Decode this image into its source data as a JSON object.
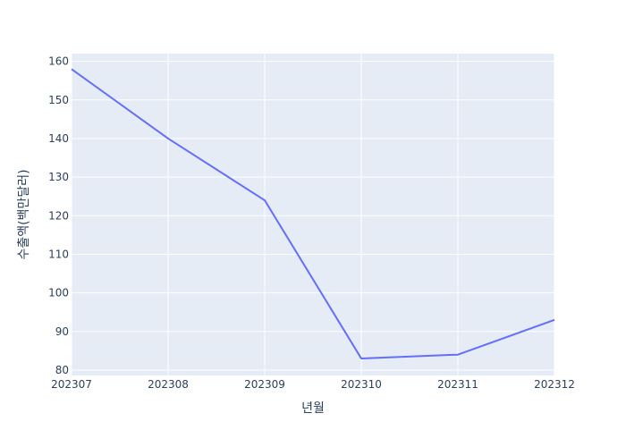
{
  "chart_data": {
    "type": "line",
    "x": [
      "202307",
      "202308",
      "202309",
      "202310",
      "202311",
      "202312"
    ],
    "series": [
      {
        "values": [
          158,
          140,
          124,
          83,
          84,
          93
        ]
      }
    ],
    "xlabel": "년월",
    "ylabel": "수출액(백만달러)",
    "ylim": [
      78.6,
      162
    ],
    "yticks": [
      80,
      90,
      100,
      110,
      120,
      130,
      140,
      150,
      160
    ],
    "grid": true,
    "legend": "none",
    "colors": {
      "plot_bg": "#e5ecf6",
      "line": "#636efa",
      "grid": "#ffffff",
      "text": "#2a3f5f"
    }
  }
}
